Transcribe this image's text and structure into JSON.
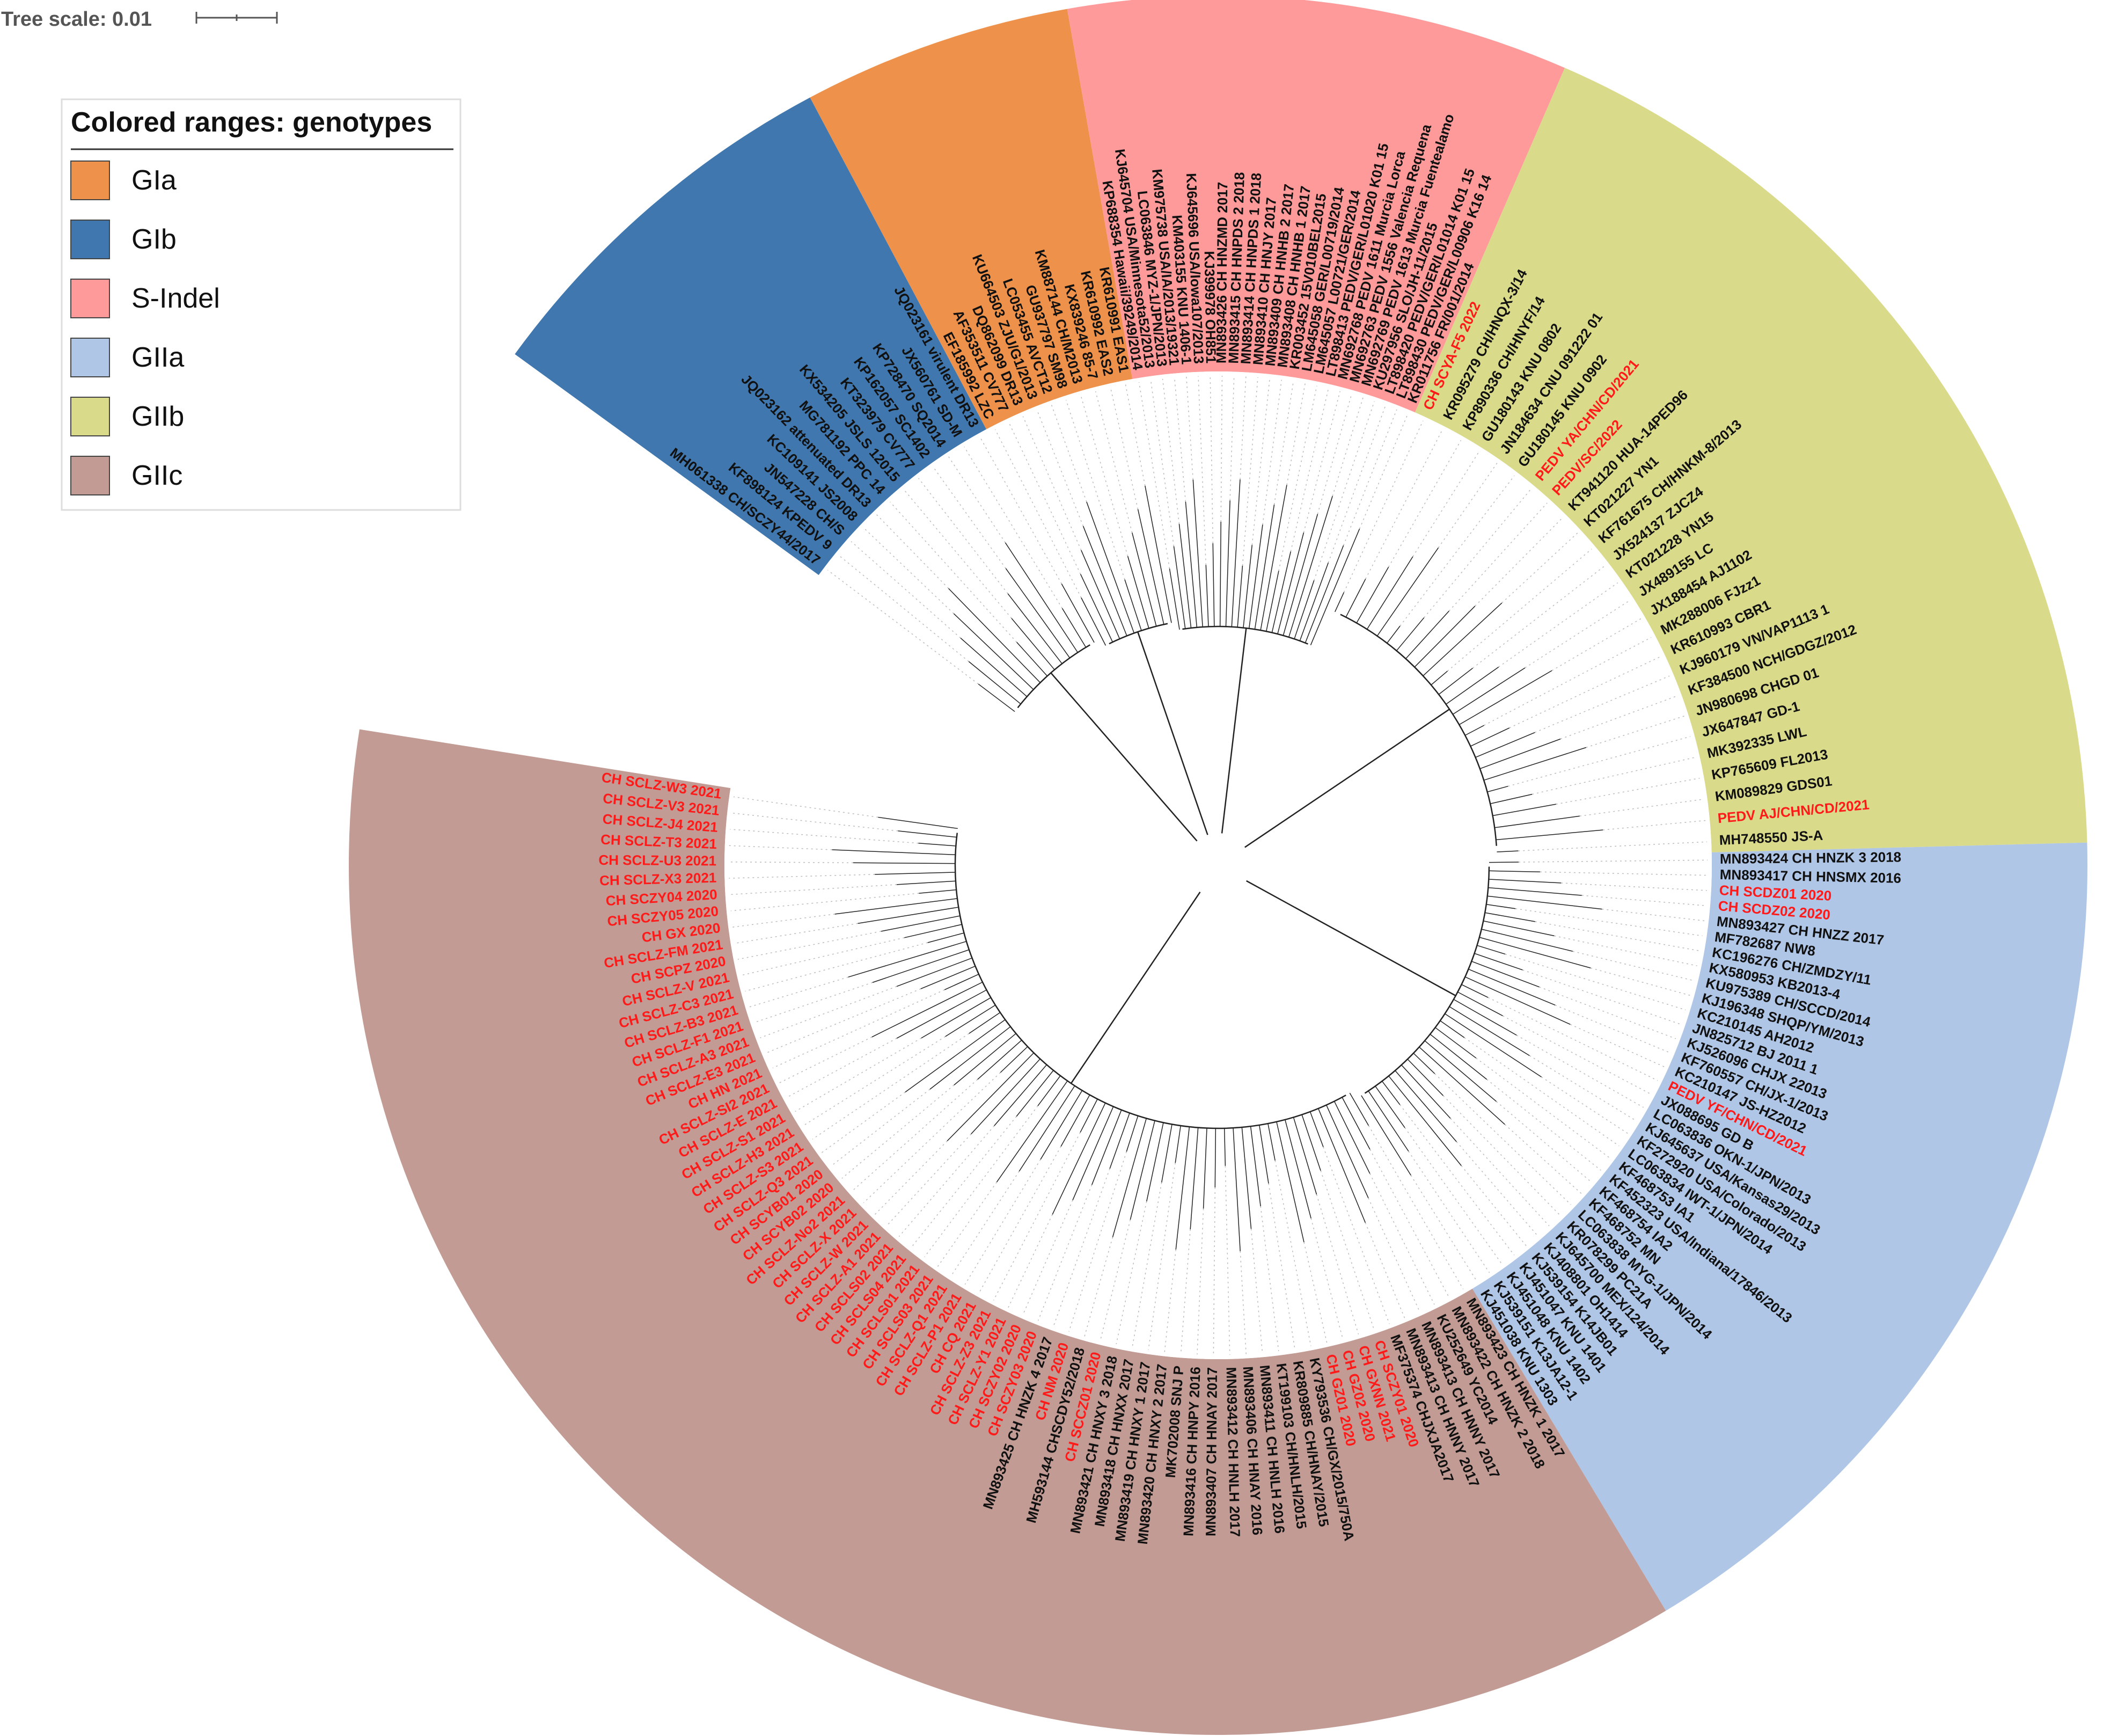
{
  "tree_scale": {
    "label": "Tree scale: 0.01"
  },
  "legend": {
    "title": "Colored ranges: genotypes",
    "items": [
      {
        "label": "GIa",
        "color": "#ee914a"
      },
      {
        "label": "GIb",
        "color": "#3f77ae"
      },
      {
        "label": "S-Indel",
        "color": "#fe9a99"
      },
      {
        "label": "GIIa",
        "color": "#afc6e7"
      },
      {
        "label": "GIIb",
        "color": "#d9da8a"
      },
      {
        "label": "GIIc",
        "color": "#c29b94"
      }
    ]
  },
  "highlight_color": "#ff1a1a",
  "clades": [
    {
      "genotype": "GIIb",
      "color": "#d9da8a",
      "leaves": [
        "CH SCYA-F5 2022",
        "KR095279 CH/HNQX-3/14",
        "KP890336 CH/HNYF/14",
        "GU180143 KNU 0802",
        "JN184634 CNU 091222 01",
        "GU180145 KNU 0902",
        "PEDV YA/CHN/CD/2021",
        "PEDV/SC/2022",
        "KT941120 HUA-14PED96",
        "KT021227 YN1",
        "KF761675 CH/HNKM-8/2013",
        "JX524137 ZJCZ4",
        "KT021228 YN15",
        "JX489155 LC",
        "JX188454 AJ1102",
        "MK288006 FJzz1",
        "KR610993 CBR1",
        "KJ960179 VN/VAP1113 1",
        "KF384500 NCH/GDGZ/2012",
        "JN980698 CHGD 01",
        "JX647847 GD-1",
        "MK392335 LWL",
        "KP765609 FL2013",
        "KM089829 GDS01",
        "PEDV AJ/CHN/CD/2021",
        "MH748550 JS-A"
      ],
      "red": [
        "CH SCYA-F5 2022",
        "PEDV YA/CHN/CD/2021",
        "PEDV/SC/2022",
        "PEDV AJ/CHN/CD/2021"
      ]
    },
    {
      "genotype": "GIIa",
      "color": "#afc6e7",
      "leaves": [
        "MN893424 CH HNZK 3 2018",
        "MN893417 CH HNSMX 2016",
        "CH SCDZ01 2020",
        "CH SCDZ02 2020",
        "MN893427 CH HNZZ 2017",
        "MF782687 NW8",
        "KC196276 CH/ZMDZY/11",
        "KX580953 KB2013-4",
        "KU975389 CH/SCCD/2014",
        "KJ196348 SHQP/YM/2013",
        "KC210145 AH2012",
        "JN825712 BJ 2011 1",
        "KJ526096 CHJX 22013",
        "KF760557 CH/JX-1/2013",
        "KC210147 JS-HZ2012",
        "PEDV YF/CHN/CD/2021",
        "JX088695 GD B",
        "LC063836 OKN-1/JPN/2013",
        "KJ645637 USA/Kansas29/2013",
        "KF272920 USA/Colorado/2013",
        "LC063834 IWT-1/JPN/2014",
        "KF468753 IA1",
        "KF452323 USA/Indiana/17846/2013",
        "KF468754 IA2",
        "KF468752 MN",
        "LC063838 MYG-1/JPN/2014",
        "KR078299 PC21A",
        "KJ645700 MEX/124/2014",
        "KJ408801 OH1414",
        "KJ539154 K14JB01",
        "KJ451047 KNU 1401",
        "KJ451048 KNU 1402",
        "KJ539151 K13JA12-1",
        "KJ451038 KNU 1303"
      ],
      "red": [
        "CH SCDZ01 2020",
        "CH SCDZ02 2020",
        "PEDV YF/CHN/CD/2021"
      ]
    },
    {
      "genotype": "GIIc",
      "color": "#c29b94",
      "leaves": [
        "MN893423 CH HNZK 1 2017",
        "MN893422 CH HNZK 2 2018",
        "KU252649 YC2014",
        "MN893413 CH HNNY 2017",
        "MN893413 CH HNNY 2017",
        "MF375374 CHJXJA2017",
        "CH SCZY01 2020",
        "CH GXNN 2021",
        "CH GZ02 2020",
        "CH GZ01 2020",
        "KY793536 CH/GX/2015/750A",
        "KR809885 CH/HNAY/2015",
        "KT199103 CH/HNLH/2015",
        "MN893411 CH HNLH 2016",
        "MN893406 CH HNAY 2016",
        "MN893412 CH HNLH 2017",
        "MN893407 CH HNAY 2017",
        "MN893416 CH HNPY 2016",
        "MK702008 SNJ P",
        "MN893420 CH HNXY 2 2017",
        "MN893419 CH HNXY 1 2017",
        "MN893418 CH HNXX 2017",
        "MN893421 CH HNXY 3 2018",
        "CH SCCZ01 2020",
        "MH593144 CHSCDY52/2018",
        "CH NM 2020",
        "MN893425 CH HNZK 4 2017",
        "CH SCZY03 2020",
        "CH SCZY02 2020",
        "CH SCLZ-Y1 2021",
        "CH SCLZ-Z3 2021",
        "CH CQ 2021",
        "CH SCLZ-P1 2021",
        "CH SCLZ-Q1 2021",
        "CH SCLS03 2021",
        "CH SCLS01 2021",
        "CH SCLS04 2021",
        "CH SCLS02 2021",
        "CH SCLZ-A1 2021",
        "CH SCLZ-W 2021",
        "CH SCLZ-X 2021",
        "CH SCLZ-No2 2021",
        "CH SCYB02 2020",
        "CH SCYB01 2020",
        "CH SCLZ-Q3 2021",
        "CH SCLZ-S3 2021",
        "CH SCLZ-H3 2021",
        "CH SCLZ-S1 2021",
        "CH SCLZ-E 2021",
        "CH SCLZ-SI2 2021",
        "CH HN 2021",
        "CH SCLZ-E3 2021",
        "CH SCLZ-A3 2021",
        "CH SCLZ-F1 2021",
        "CH SCLZ-B3 2021",
        "CH SCLZ-C3 2021",
        "CH SCLZ-V 2021",
        "CH SCPZ 2020",
        "CH SCLZ-FM 2021",
        "CH GX 2020",
        "CH SCZY05 2020",
        "CH SCZY04 2020",
        "CH SCLZ-X3 2021",
        "CH SCLZ-U3 2021",
        "CH SCLZ-T3 2021",
        "CH SCLZ-J4 2021",
        "CH SCLZ-V3 2021",
        "CH SCLZ-W3 2021"
      ],
      "red": [
        "CH SCZY01 2020",
        "CH GXNN 2021",
        "CH GZ02 2020",
        "CH GZ01 2020",
        "CH SCCZ01 2020",
        "CH NM 2020",
        "CH SCZY03 2020",
        "CH SCZY02 2020",
        "CH SCLZ-Y1 2021",
        "CH SCLZ-Z3 2021",
        "CH CQ 2021",
        "CH SCLZ-P1 2021",
        "CH SCLZ-Q1 2021",
        "CH SCLS03 2021",
        "CH SCLS01 2021",
        "CH SCLS04 2021",
        "CH SCLS02 2021",
        "CH SCLZ-A1 2021",
        "CH SCLZ-W 2021",
        "CH SCLZ-X 2021",
        "CH SCLZ-No2 2021",
        "CH SCYB02 2020",
        "CH SCYB01 2020",
        "CH SCLZ-Q3 2021",
        "CH SCLZ-S3 2021",
        "CH SCLZ-H3 2021",
        "CH SCLZ-S1 2021",
        "CH SCLZ-E 2021",
        "CH SCLZ-SI2 2021",
        "CH HN 2021",
        "CH SCLZ-E3 2021",
        "CH SCLZ-A3 2021",
        "CH SCLZ-F1 2021",
        "CH SCLZ-B3 2021",
        "CH SCLZ-C3 2021",
        "CH SCLZ-V 2021",
        "CH SCPZ 2020",
        "CH SCLZ-FM 2021",
        "CH GX 2020",
        "CH SCZY05 2020",
        "CH SCZY04 2020",
        "CH SCLZ-X3 2021",
        "CH SCLZ-U3 2021",
        "CH SCLZ-T3 2021",
        "CH SCLZ-J4 2021",
        "CH SCLZ-V3 2021",
        "CH SCLZ-W3 2021"
      ]
    },
    {
      "genotype": "GIb",
      "color": "#3f77ae",
      "leaves": [
        "MH061338 CH/SCZY44/2017",
        "KF898124 KPEDV 9",
        "JN547228 CH/S",
        "KC109141 JS2008",
        "JQ023162 attenuated DR13",
        "MG781192 PPC 14",
        "KX534205 JSLS 12015",
        "KT323979 CV777",
        "KP162057 SC1402",
        "KP728470 SQ2014",
        "JX560761 SD-M",
        "JQ023161 virulent DR13"
      ],
      "red": []
    },
    {
      "genotype": "GIa",
      "color": "#ee914a",
      "leaves": [
        "EF185992 LZC",
        "AF353511 CV777",
        "DQ862099 DR13",
        "KU664503 ZJU/G1/2013",
        "LC053455 AVCT12",
        "GU937797 SM98",
        "KM887144 CH/M2013",
        "KX839246 85-7",
        "KR610992 EAS2",
        "KR610991 EAS1"
      ],
      "red": []
    },
    {
      "genotype": "S-Indel",
      "color": "#fe9a99",
      "leaves": [
        "KP688354 Hawaii/39249/2014",
        "KJ645704 USA/Minnesota52/2013",
        "LC063846 MYZ-1/JPN/2013",
        "KM975738 USA/IA/2013/19321",
        "KM403155 KNU 1406-1",
        "KJ645696 USA/Iowa107/2013",
        "KJ399978 OH851",
        "MN893426 CH HNZMD 2017",
        "MN893415 CH HNPDS 2 2018",
        "MN893414 CH HNPDS 1 2018",
        "MN893410 CH HNJY 2017",
        "MN893409 CH HNHB 2 2017",
        "MN893408 CH HNHB 1 2017",
        "KR003452 15V010BEL2015",
        "LM645058 GER/L00719/2014",
        "LM645057 L00721/GER/2014",
        "LT898413 PEDV/GER/L01020 K01 15",
        "MN692768 PEDV 1611 Murcia Lorca",
        "MN692763 PEDV 1556 Valencia Requena",
        "MN692769 PEDV 1613 Murcia Fuentealamo",
        "KU297956 SLO/JH-11/2015",
        "LT898420 PEDV/GER/L01014 K01 15",
        "LT898430 PEDV/GER/L00906 K16 14",
        "KR011756 FR/001/2014"
      ],
      "red": []
    }
  ]
}
